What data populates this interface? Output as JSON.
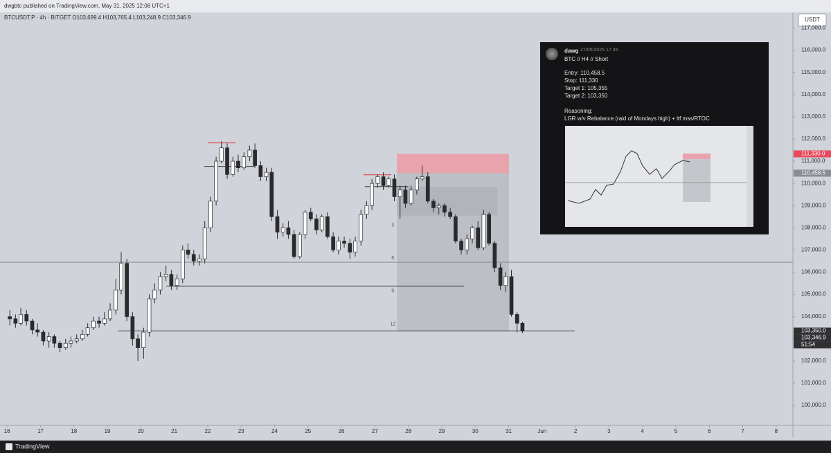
{
  "header": {
    "published": "dwgbtc published on TradingView.com, May 31, 2025 12:08 UTC+1",
    "legend": "BTCUSDT.P · 4h · BITGET  O103,699.4  H103,765.4  L103,248.9  C103,346.9",
    "currency": "USDT"
  },
  "chart_data": {
    "type": "candlestick",
    "up_color": "#ffffff",
    "down_color": "#2b2b2e",
    "edge_color": "#2b2b2e",
    "x": [
      16,
      16.17,
      16.33,
      16.5,
      16.67,
      16.83,
      17,
      17.17,
      17.33,
      17.5,
      17.67,
      17.83,
      18,
      18.17,
      18.33,
      18.5,
      18.67,
      18.83,
      19,
      19.17,
      19.33,
      19.5,
      19.67,
      19.83,
      20,
      20.17,
      20.33,
      20.5,
      20.67,
      20.83,
      21,
      21.17,
      21.33,
      21.5,
      21.67,
      21.83,
      22,
      22.17,
      22.33,
      22.5,
      22.67,
      22.83,
      23,
      23.17,
      23.33,
      23.5,
      23.67,
      23.83,
      24,
      24.17,
      24.33,
      24.5,
      24.67,
      24.83,
      25,
      25.17,
      25.33,
      25.5,
      25.67,
      25.83,
      26,
      26.17,
      26.33,
      26.5,
      26.67,
      26.83,
      27,
      27.17,
      27.33,
      27.5,
      27.67,
      27.83,
      28,
      28.17,
      28.33,
      28.5,
      28.67,
      28.83,
      29,
      29.17,
      29.33,
      29.5,
      29.67,
      29.83,
      30,
      30.17,
      30.33,
      30.5,
      30.67,
      30.83,
      31,
      31.17,
      31.33
    ],
    "ohlc": [
      [
        104000,
        104300,
        103600,
        103900
      ],
      [
        103900,
        104100,
        103500,
        103700
      ],
      [
        103700,
        104400,
        103600,
        104100
      ],
      [
        104100,
        104300,
        103600,
        103800
      ],
      [
        103800,
        103900,
        103200,
        103400
      ],
      [
        103400,
        103700,
        103100,
        103300
      ],
      [
        103300,
        103400,
        102700,
        102900
      ],
      [
        102900,
        103300,
        102600,
        103100
      ],
      [
        103100,
        103200,
        102600,
        102800
      ],
      [
        102800,
        102900,
        102400,
        102600
      ],
      [
        102600,
        103000,
        102500,
        102800
      ],
      [
        102800,
        103100,
        102600,
        102900
      ],
      [
        102900,
        103200,
        102800,
        103000
      ],
      [
        103000,
        103400,
        102900,
        103200
      ],
      [
        103200,
        103700,
        103100,
        103500
      ],
      [
        103500,
        104000,
        103400,
        103800
      ],
      [
        103800,
        104000,
        103500,
        103700
      ],
      [
        103700,
        104200,
        103600,
        103900
      ],
      [
        103900,
        104600,
        103800,
        104300
      ],
      [
        104300,
        105700,
        104100,
        105200
      ],
      [
        105200,
        106900,
        105000,
        106400
      ],
      [
        106400,
        106600,
        103800,
        104000
      ],
      [
        104000,
        104200,
        102700,
        103000
      ],
      [
        103000,
        103200,
        102000,
        102600
      ],
      [
        102600,
        103500,
        102100,
        103300
      ],
      [
        103300,
        105000,
        103100,
        104800
      ],
      [
        104800,
        105500,
        104600,
        105200
      ],
      [
        105200,
        106000,
        105000,
        105800
      ],
      [
        105800,
        106300,
        105600,
        105900
      ],
      [
        105900,
        106100,
        105200,
        105400
      ],
      [
        105400,
        105900,
        105200,
        105700
      ],
      [
        105700,
        107200,
        105500,
        107000
      ],
      [
        107000,
        107300,
        106600,
        106800
      ],
      [
        106800,
        107000,
        106300,
        106500
      ],
      [
        106500,
        106800,
        106300,
        106600
      ],
      [
        106600,
        108300,
        106400,
        108000
      ],
      [
        108000,
        109400,
        107800,
        109200
      ],
      [
        109200,
        111200,
        109000,
        111000
      ],
      [
        111000,
        111900,
        110900,
        111600
      ],
      [
        111600,
        111800,
        110200,
        110400
      ],
      [
        110400,
        111200,
        110300,
        111000
      ],
      [
        111000,
        111300,
        110500,
        110700
      ],
      [
        110700,
        111400,
        110600,
        111200
      ],
      [
        111200,
        111700,
        111000,
        111500
      ],
      [
        111500,
        111800,
        110700,
        110800
      ],
      [
        110800,
        111000,
        110100,
        110300
      ],
      [
        110300,
        110700,
        110100,
        110500
      ],
      [
        110500,
        110700,
        108300,
        108500
      ],
      [
        108500,
        108800,
        107500,
        107800
      ],
      [
        107800,
        108200,
        107600,
        108000
      ],
      [
        108000,
        108300,
        107500,
        107700
      ],
      [
        107700,
        107900,
        106600,
        106700
      ],
      [
        106700,
        107800,
        106600,
        107700
      ],
      [
        107700,
        108800,
        107500,
        108700
      ],
      [
        108700,
        108900,
        108300,
        108400
      ],
      [
        108400,
        108600,
        107700,
        107900
      ],
      [
        107900,
        108600,
        107800,
        108500
      ],
      [
        108500,
        108700,
        107500,
        107600
      ],
      [
        107600,
        107800,
        106900,
        107000
      ],
      [
        107000,
        107600,
        106800,
        107400
      ],
      [
        107400,
        107600,
        107100,
        107300
      ],
      [
        107300,
        107500,
        106600,
        106900
      ],
      [
        106900,
        107600,
        106700,
        107400
      ],
      [
        107400,
        108800,
        107200,
        108600
      ],
      [
        108600,
        109200,
        108400,
        109000
      ],
      [
        109000,
        110200,
        108800,
        110000
      ],
      [
        110000,
        110400,
        109800,
        110300
      ],
      [
        110300,
        110500,
        109700,
        109900
      ],
      [
        109900,
        110300,
        109800,
        110200
      ],
      [
        110200,
        110400,
        109200,
        109400
      ],
      [
        109400,
        109900,
        108400,
        109700
      ],
      [
        109700,
        109900,
        108900,
        109100
      ],
      [
        109100,
        109900,
        109000,
        109700
      ],
      [
        109700,
        110300,
        109500,
        110200
      ],
      [
        110200,
        110800,
        110100,
        110300
      ],
      [
        110300,
        110500,
        109100,
        109200
      ],
      [
        109200,
        109300,
        108700,
        108900
      ],
      [
        108900,
        109100,
        108600,
        109000
      ],
      [
        109000,
        109100,
        108500,
        108700
      ],
      [
        108700,
        108900,
        108400,
        108500
      ],
      [
        108500,
        108600,
        107300,
        107400
      ],
      [
        107400,
        107500,
        106800,
        107000
      ],
      [
        107000,
        107700,
        106800,
        107500
      ],
      [
        107500,
        108100,
        107300,
        108000
      ],
      [
        108000,
        108300,
        107000,
        107100
      ],
      [
        107100,
        108800,
        107000,
        108600
      ],
      [
        108600,
        108700,
        107200,
        107300
      ],
      [
        107300,
        107400,
        106000,
        106200
      ],
      [
        106200,
        106400,
        105200,
        105400
      ],
      [
        105400,
        106000,
        105100,
        105800
      ],
      [
        105800,
        106100,
        104000,
        104100
      ],
      [
        104100,
        104200,
        103300,
        103699.4
      ],
      [
        103699.4,
        103765.4,
        103248.9,
        103346.9
      ]
    ],
    "xlim": [
      15.79,
      39.5
    ],
    "xticks": [
      16,
      17,
      18,
      19,
      20,
      21,
      22,
      23,
      24,
      25,
      26,
      27,
      28,
      29,
      30,
      31,
      {
        "value": 32,
        "label": "Jun"
      },
      {
        "value": 33,
        "label": "2"
      },
      {
        "value": 34,
        "label": "3"
      },
      {
        "value": 35,
        "label": "4"
      },
      {
        "value": 36,
        "label": "5"
      },
      {
        "value": 37,
        "label": "6"
      },
      {
        "value": 38,
        "label": "7"
      },
      {
        "value": 39,
        "label": "8"
      }
    ],
    "ylim": [
      99100,
      117700
    ],
    "yticks": [
      {
        "value": 100000,
        "label": "100,000.0"
      },
      {
        "value": 101000,
        "label": "101,000.0"
      },
      {
        "value": 102000,
        "label": "102,000.0"
      },
      {
        "value": 103000,
        "label": "103,000.0"
      },
      {
        "value": 104000,
        "label": "104,000.0"
      },
      {
        "value": 105000,
        "label": "105,000.0"
      },
      {
        "value": 106000,
        "label": "106,000.0"
      },
      {
        "value": 107000,
        "label": "107,000.0"
      },
      {
        "value": 108000,
        "label": "108,000.0"
      },
      {
        "value": 109000,
        "label": "109,000.0"
      },
      {
        "value": 110000,
        "label": "110,000.0"
      },
      {
        "value": 111000,
        "label": "111,000.0"
      },
      {
        "value": 112000,
        "label": "112,000.0"
      },
      {
        "value": 113000,
        "label": "113,000.0"
      },
      {
        "value": 114000,
        "label": "114,000.0"
      },
      {
        "value": 115000,
        "label": "115,000.0"
      },
      {
        "value": 116000,
        "label": "116,000.0"
      },
      {
        "value": 117000,
        "label": "117,000.0"
      }
    ],
    "zones": [
      {
        "from": 110458.5,
        "to": 111330,
        "x": [
          27.66,
          31.01
        ],
        "color": "#e8a3ad"
      },
      {
        "from": 103350,
        "to": 110458.5,
        "x": [
          27.66,
          31.01
        ],
        "color": "#bcbfc6"
      },
      {
        "from": 108550,
        "to": 109850,
        "x": [
          27.66,
          30.66
        ],
        "color": "#b1b4bb"
      }
    ],
    "levels": [
      {
        "value": 106450,
        "color": "#8a8c92"
      },
      {
        "value": 105366,
        "x": [
          20.76,
          29.66
        ],
        "color": "#3a3a3a"
      },
      {
        "value": 103350,
        "x": [
          19.31,
          32.98
        ],
        "color": "#3a3a3a"
      },
      {
        "value": 111822,
        "x": [
          22.0,
          22.83
        ],
        "color": "#e0323c"
      },
      {
        "value": 110387,
        "x": [
          26.66,
          27.49
        ],
        "color": "#e0323c"
      },
      {
        "value": 110762,
        "x": [
          21.9,
          23.41
        ],
        "color": "#3a3a3a"
      },
      {
        "value": 109857,
        "x": [
          26.7,
          28.0
        ],
        "color": "#3a3a3a"
      }
    ],
    "box_labels": [
      "3",
      "6",
      "9",
      "12"
    ],
    "price_tags": [
      {
        "value": 111330,
        "label": "111,330.0",
        "color": "#e8495c"
      },
      {
        "value": 110458.5,
        "label": "110,458.5",
        "color": "#8a8c92"
      },
      {
        "value": 103350,
        "label": "103,350.0",
        "color": "#303033"
      },
      {
        "value": 103346.9,
        "label": "103,346.9",
        "color": "#303033"
      }
    ],
    "countdown": "51:54"
  },
  "post": {
    "author": "dawg",
    "time": "27/05/2025 17:45",
    "title": "BTC // H4 // Short",
    "lines": [
      "Entry: 110,458.5",
      "Stop: 111,330",
      "Target 1: 105,355",
      "Target 2: 103,350"
    ],
    "reasoning_head": "Reasoning:",
    "reasoning": "LGR w/v Rebalance (raid of Mondays high) + ltf mss/RTOC"
  },
  "footer": {
    "brand": "TradingView"
  }
}
